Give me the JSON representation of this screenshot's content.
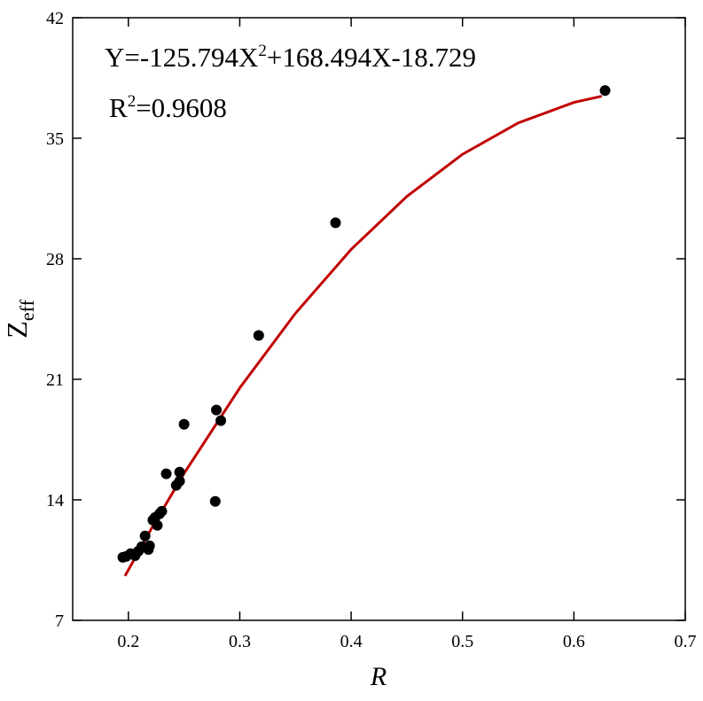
{
  "chart_data": {
    "type": "scatter",
    "annotations": [
      [
        "Y=-125.794X",
        "2",
        "+168.494X-18.729"
      ],
      [
        "R",
        "2",
        "=0.9608"
      ]
    ],
    "xlabel": "R",
    "ylabel": [
      "Z",
      "eff"
    ],
    "xlim": [
      0.15,
      0.7
    ],
    "ylim": [
      7,
      42
    ],
    "xticks": [
      0.2,
      0.3,
      0.4,
      0.5,
      0.6,
      0.7
    ],
    "yticks": [
      7,
      14,
      21,
      28,
      35,
      42
    ],
    "points": {
      "color": "#000000",
      "x": [
        0.195,
        0.198,
        0.202,
        0.206,
        0.209,
        0.212,
        0.215,
        0.218,
        0.219,
        0.222,
        0.224,
        0.226,
        0.228,
        0.23,
        0.234,
        0.243,
        0.246,
        0.246,
        0.25,
        0.278,
        0.279,
        0.283,
        0.317,
        0.386,
        0.628
      ],
      "y": [
        10.66,
        10.71,
        10.87,
        10.76,
        11.02,
        11.28,
        11.9,
        11.12,
        11.33,
        12.82,
        12.98,
        12.52,
        13.19,
        13.34,
        15.51,
        14.84,
        15.09,
        15.61,
        18.39,
        13.91,
        19.22,
        18.6,
        23.55,
        30.09,
        37.77
      ]
    },
    "fit": {
      "color": "#c00000",
      "x": [
        0.197,
        0.22,
        0.25,
        0.3,
        0.35,
        0.4,
        0.45,
        0.5,
        0.55,
        0.6,
        0.625
      ],
      "y": [
        9.582,
        12.252,
        15.533,
        20.498,
        24.834,
        28.542,
        31.62,
        34.069,
        35.89,
        37.081,
        37.442
      ]
    }
  }
}
